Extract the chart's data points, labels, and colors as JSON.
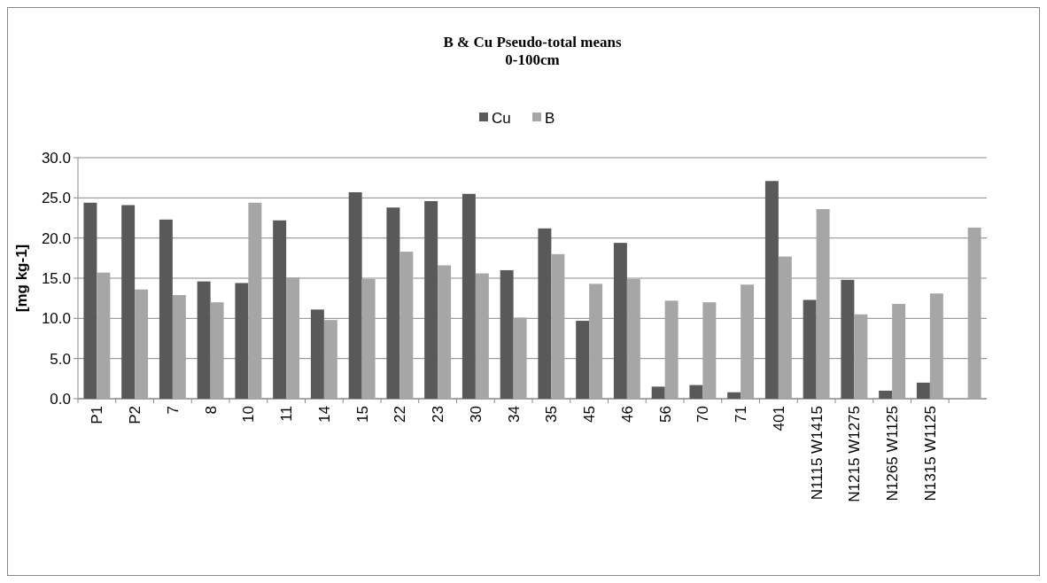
{
  "chart_data": {
    "type": "bar",
    "title": "B & Cu  Pseudo-total means\n0-100cm",
    "ylabel": "[mg kg-1]",
    "categories": [
      "P1",
      "P2",
      "7",
      "8",
      "10",
      "11",
      "14",
      "15",
      "22",
      "23",
      "30",
      "34",
      "35",
      "45",
      "46",
      "56",
      "70",
      "71",
      "401",
      "N1115 W1415",
      "N1215 W1275",
      "N1265 W1125",
      "N1315 W1125",
      null
    ],
    "series": [
      {
        "name": "Cu",
        "color": "#595959",
        "values": [
          24.4,
          24.1,
          22.3,
          14.6,
          14.4,
          22.2,
          11.1,
          25.7,
          23.8,
          24.6,
          25.5,
          16.0,
          21.2,
          9.7,
          19.4,
          1.5,
          1.7,
          0.8,
          27.1,
          12.3,
          14.8,
          1.0,
          2.0,
          null
        ]
      },
      {
        "name": "B",
        "color": "#a6a6a6",
        "values": [
          15.7,
          13.6,
          12.9,
          12.0,
          24.4,
          15.1,
          9.8,
          14.9,
          18.3,
          16.6,
          15.6,
          10.1,
          18.0,
          14.3,
          14.9,
          12.2,
          12.0,
          14.2,
          17.7,
          23.6,
          10.5,
          11.8,
          13.1,
          21.3
        ]
      }
    ],
    "ylim": [
      0,
      30
    ],
    "yticks": [
      {
        "value": 0,
        "label": "0.0"
      },
      {
        "value": 5,
        "label": "5.0"
      },
      {
        "value": 10,
        "label": "10.0"
      },
      {
        "value": 15,
        "label": "15.0"
      },
      {
        "value": 20,
        "label": "20.0"
      },
      {
        "value": 25,
        "label": "25.0"
      },
      {
        "value": 30,
        "label": "30.0"
      }
    ],
    "grid": "y",
    "legend": "top"
  }
}
